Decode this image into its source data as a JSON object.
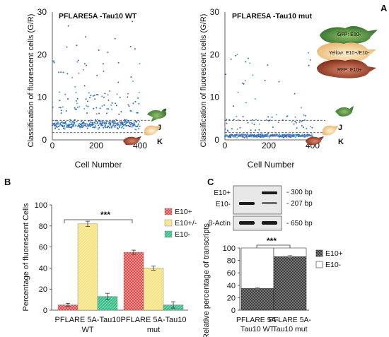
{
  "panels": {
    "a": "A",
    "b": "B",
    "c": "C"
  },
  "scatter_left": {
    "title": "PFLARE5A -Tau10 WT",
    "ylabel": "Classification of fluorescent cells (G/R)",
    "xlabel": "Cell Number",
    "threshold_j": "J",
    "threshold_k": "K"
  },
  "scatter_right": {
    "title": "PFLARE5A -Tau10 mut",
    "ylabel": "Classification of fluorescent cells (G/R)",
    "xlabel": "Cell Number",
    "threshold_j": "J",
    "threshold_k": "K"
  },
  "cell_legend": {
    "gfp": "GFP: E10-",
    "yellow": "Yellow: E10+/E10-",
    "rfp": "RFP: E10+"
  },
  "bar_b": {
    "significance": "***"
  },
  "gel": {
    "e10p": "E10+",
    "e10m": "E10-",
    "actin": "β-Actin",
    "bp300": "- 300 bp",
    "bp207": "- 207 bp",
    "bp650": "- 650 bp"
  },
  "bar_c": {
    "significance": "***"
  },
  "colors": {
    "e10p": "#d93b3b",
    "e10pm": "#f3dd73",
    "e10m": "#3fbf8a",
    "dot_blue": "#2f6db8",
    "dot_cyan": "#45a7d9",
    "dot_pink": "#c85ca0"
  },
  "chart_data": [
    {
      "type": "scatter",
      "title": "PFLARE5A -Tau10 WT",
      "xlabel": "Cell Number",
      "ylabel": "Classification of fluorescent cells (G/R)",
      "xlim": [
        0,
        400
      ],
      "ylim": [
        0,
        30
      ],
      "xticks": [
        0,
        200,
        400
      ],
      "yticks": [
        0,
        10,
        20,
        30
      ],
      "thresholds": [
        {
          "label": "J",
          "y": 4.6
        },
        {
          "label": "K",
          "y": 1.7
        }
      ],
      "n_points": 400
    },
    {
      "type": "scatter",
      "title": "PFLARE5A -Tau10 mut",
      "xlabel": "Cell Number",
      "ylabel": "Classification of fluorescent cells (G/R)",
      "xlim": [
        0,
        400
      ],
      "ylim": [
        0,
        30
      ],
      "xticks": [
        0,
        200,
        400
      ],
      "yticks": [
        0,
        10,
        20,
        30
      ],
      "thresholds": [
        {
          "label": "J",
          "y": 4.6
        },
        {
          "label": "K",
          "y": 1.7
        }
      ],
      "n_points": 400
    },
    {
      "type": "bar",
      "categories": [
        "PFLARE 5A-Tau10 WT",
        "PFLARE 5A-Tau10 mut"
      ],
      "series": [
        {
          "name": "E10+",
          "values": [
            5,
            55
          ],
          "errors": [
            1.5,
            2
          ]
        },
        {
          "name": "E10+/-",
          "values": [
            82,
            40
          ],
          "errors": [
            2.5,
            2
          ]
        },
        {
          "name": "E10-",
          "values": [
            13,
            5
          ],
          "errors": [
            3,
            3
          ]
        }
      ],
      "ylabel": "Percentage of fluorescent Cells",
      "ylim": [
        0,
        100
      ],
      "yticks": [
        0,
        20,
        40,
        60,
        80,
        100
      ],
      "legend": "top-right"
    },
    {
      "type": "bar",
      "stacked": true,
      "categories": [
        "PFLARE 5A-Tau10 WT",
        "PFLARE 5A-Tau10 mut"
      ],
      "series": [
        {
          "name": "E10+",
          "values": [
            35,
            86
          ],
          "errors": [
            2,
            2
          ]
        },
        {
          "name": "E10-",
          "values": [
            65,
            14
          ]
        }
      ],
      "ylabel": "Relative percentage of transcripts",
      "ylim": [
        0,
        100
      ],
      "yticks": [
        0,
        20,
        40,
        60,
        80,
        100
      ],
      "legend": "top-right"
    }
  ]
}
